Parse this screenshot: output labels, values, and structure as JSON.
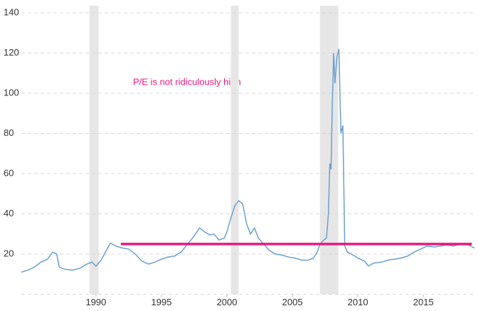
{
  "chart_data": {
    "type": "line",
    "x": [
      1984.3,
      1984.8,
      1985.3,
      1985.8,
      1986.3,
      1986.7,
      1987.0,
      1987.2,
      1987.6,
      1988.2,
      1988.8,
      1989.3,
      1989.7,
      1990.0,
      1990.4,
      1990.8,
      1991.1,
      1991.5,
      1992.0,
      1992.5,
      1993.0,
      1993.5,
      1994.0,
      1994.5,
      1995.0,
      1995.5,
      1996.0,
      1996.5,
      1997.0,
      1997.5,
      1997.9,
      1998.3,
      1998.7,
      1999.0,
      1999.4,
      1999.8,
      2000.0,
      2000.3,
      2000.6,
      2000.9,
      2001.2,
      2001.5,
      2001.8,
      2002.1,
      2002.4,
      2002.8,
      2003.2,
      2003.7,
      2004.2,
      2004.7,
      2005.2,
      2005.7,
      2006.2,
      2006.6,
      2006.9,
      2007.1,
      2007.4,
      2007.6,
      2007.75,
      2007.85,
      2007.95,
      2008.05,
      2008.15,
      2008.25,
      2008.4,
      2008.55,
      2008.7,
      2008.85,
      2009.0,
      2009.2,
      2009.5,
      2010.0,
      2010.5,
      2010.8,
      2011.2,
      2011.8,
      2012.3,
      2012.8,
      2013.3,
      2013.8,
      2014.3,
      2014.8,
      2015.3,
      2015.8,
      2016.3,
      2016.8,
      2017.3,
      2017.8,
      2018.3,
      2018.9
    ],
    "values": [
      11,
      12,
      13.5,
      16,
      17.5,
      21,
      20,
      13.5,
      12.5,
      12,
      13,
      15,
      16,
      14,
      17,
      22,
      25.5,
      24,
      23,
      22.5,
      20,
      16.5,
      15,
      16,
      17.5,
      18.5,
      19,
      21,
      25,
      29,
      33,
      31,
      29.5,
      30,
      27,
      28,
      31,
      38,
      44,
      46.5,
      45,
      35,
      30,
      33,
      28,
      25,
      22,
      20,
      19.5,
      18.5,
      18,
      17,
      17,
      18,
      21,
      25,
      27,
      28,
      40,
      65,
      62,
      95,
      120,
      105,
      118,
      122,
      80,
      84,
      24,
      21,
      20,
      18,
      16.5,
      14,
      15.5,
      16,
      17,
      17.5,
      18,
      19,
      21,
      22.5,
      24,
      23.5,
      24,
      24.5,
      24,
      25,
      25,
      23
    ],
    "color": "#6b9fcf",
    "recessions": [
      [
        1989.5,
        1990.2
      ],
      [
        2000.3,
        2000.9
      ],
      [
        2007.1,
        2008.5
      ]
    ],
    "recession_color": "#e6e6e6",
    "reference_line": {
      "value": 25,
      "x": [
        1991.9,
        2018.7
      ],
      "color": "#e8197d"
    },
    "annotation": {
      "text": "P/E is not ridiculously high",
      "color": "#e8197d"
    },
    "xlim": [
      1984.3,
      2018.9
    ],
    "xticks": [
      1990,
      1995,
      2000,
      2005,
      2010,
      2015
    ],
    "ylim": [
      0,
      140
    ],
    "yticks": [
      20,
      40,
      60,
      80,
      100,
      120,
      140
    ],
    "grid": true
  }
}
